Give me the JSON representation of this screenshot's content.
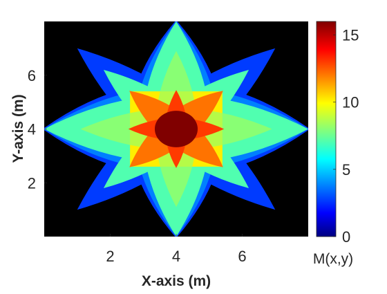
{
  "chart_data": {
    "type": "heatmap",
    "title": "",
    "xlabel": "X-axis (m)",
    "ylabel": "Y-axis (m)",
    "xlim": [
      0,
      8
    ],
    "ylim": [
      0,
      8
    ],
    "xticks": [
      2,
      4,
      6
    ],
    "yticks": [
      2,
      4,
      6
    ],
    "colorbar": {
      "label": "M(x,y)",
      "range": [
        0,
        16
      ],
      "ticks": [
        0,
        5,
        10,
        15
      ],
      "colormap": "jet"
    },
    "background_color": "#000000",
    "center": [
      4,
      4
    ],
    "max_value": 16,
    "pattern": "overlapping lens shapes; value = count of covering lenses",
    "levels": [
      {
        "value": 0,
        "color": "#000000"
      },
      {
        "value": 2,
        "color": "#003bff"
      },
      {
        "value": 4,
        "color": "#0080ff"
      },
      {
        "value": 6,
        "color": "#50ffb0"
      },
      {
        "value": 8,
        "color": "#9cff60"
      },
      {
        "value": 10,
        "color": "#ffee00"
      },
      {
        "value": 12,
        "color": "#ff7300"
      },
      {
        "value": 14,
        "color": "#ff3a00"
      },
      {
        "value": 16,
        "color": "#800000"
      }
    ]
  }
}
